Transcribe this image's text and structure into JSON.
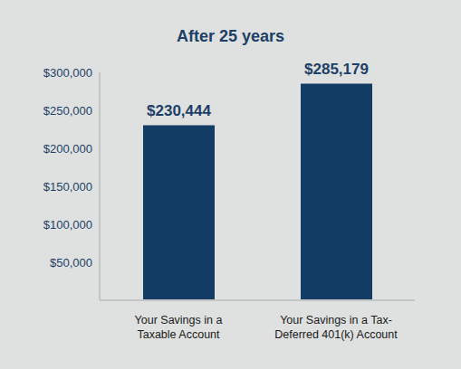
{
  "chart_data": {
    "type": "bar",
    "title": "After 25 years",
    "categories": [
      "Your Savings in a\nTaxable Account",
      "Your Savings in a Tax-\nDeferred 401(k) Account"
    ],
    "values": [
      230444,
      285179
    ],
    "value_labels": [
      "$230,444",
      "$285,179"
    ],
    "data_labels": true,
    "color": "#133d64",
    "ylim": [
      0,
      300000
    ],
    "yticks": [
      {
        "value": 50000,
        "label": "$50,000"
      },
      {
        "value": 100000,
        "label": "$100,000"
      },
      {
        "value": 150000,
        "label": "$150,000"
      },
      {
        "value": 200000,
        "label": "$200,000"
      },
      {
        "value": 250000,
        "label": "$250,000"
      },
      {
        "value": 300000,
        "label": "$300,000"
      }
    ],
    "grid": false
  }
}
